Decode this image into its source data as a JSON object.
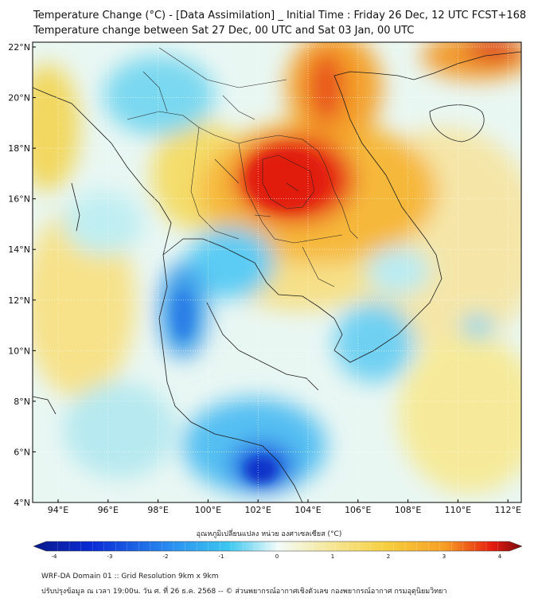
{
  "title_line1": "Temperature Change (°C) - [Data Assimilation] _ Initial Time : Friday 26 Dec, 12 UTC FCST+168",
  "title_line2": "Temperature change between Sat 27 Dec, 00 UTC and Sat 03 Jan, 00 UTC",
  "lat_labels": [
    "22°N",
    "20°N",
    "18°N",
    "16°N",
    "14°N",
    "12°N",
    "10°N",
    "8°N",
    "6°N",
    "4°N"
  ],
  "lon_labels": [
    "94°E",
    "96°E",
    "98°E",
    "100°E",
    "102°E",
    "104°E",
    "106°E",
    "108°E",
    "110°E",
    "112°E"
  ],
  "colorbar": {
    "title": "อุณหภูมิเปลี่ยนแปลง หน่วย องศาเซลเซียส (°C)",
    "ticks": [
      "-4",
      "-3",
      "-2",
      "-1",
      "0",
      "1",
      "2",
      "3",
      "4"
    ],
    "min": -4,
    "max": 4
  },
  "footer_line1": "WRF-DA Domain 01 :: Grid Resolution 9km x 9km",
  "footer_line2": "ปรับปรุงข้อมูล ณ เวลา 19:00น. วัน ศ. ที่ 26 ธ.ค. 2568 -- © ส่วนพยากรณ์อากาศเชิงตัวเลข กองพยากรณ์อากาศ กรมอุตุนิยมวิทยา",
  "colors": {
    "deep_blue": "#0a2bd6",
    "cyan": "#3cc8f0",
    "light": "#e8f6f4",
    "yellow": "#f6e05a",
    "orange": "#f7a024",
    "red": "#e51c10",
    "dark_red": "#7a0a0a"
  }
}
